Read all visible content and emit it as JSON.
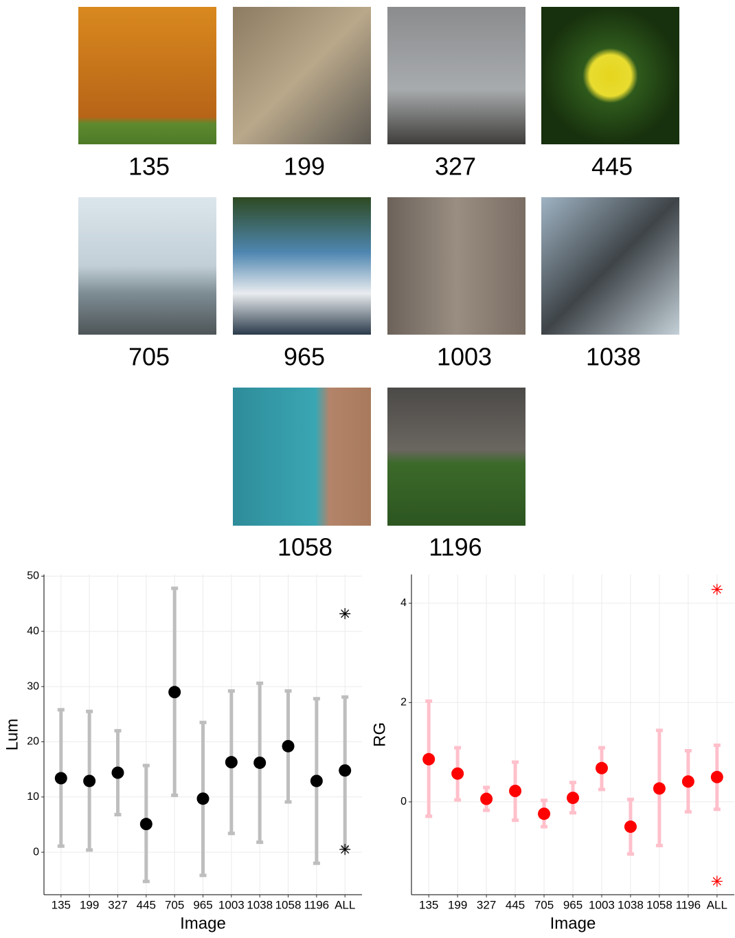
{
  "thumbnails": {
    "labels": [
      "135",
      "199",
      "327",
      "445",
      "705",
      "965",
      "1003",
      "1038",
      "1058",
      "1196"
    ]
  },
  "chart_data": [
    {
      "type": "errorbar",
      "xlabel": "Image",
      "ylabel": "Lum",
      "categories": [
        "135",
        "199",
        "327",
        "445",
        "705",
        "965",
        "1003",
        "1038",
        "1058",
        "1196",
        "ALL"
      ],
      "values": [
        13.4,
        12.9,
        14.4,
        5.1,
        29.0,
        9.7,
        16.3,
        16.2,
        19.2,
        12.9,
        14.8
      ],
      "lower": [
        1.1,
        0.4,
        6.8,
        -5.3,
        10.3,
        -4.2,
        3.4,
        1.8,
        9.1,
        -2.0,
        0.9
      ],
      "upper": [
        25.8,
        25.5,
        22.0,
        15.7,
        47.8,
        23.5,
        29.2,
        30.6,
        29.2,
        27.8,
        28.1
      ],
      "markers": [
        43.2,
        0.5
      ],
      "color": "#000000",
      "bar_color": "#bebebe",
      "ylim": [
        -7.7,
        50.3
      ],
      "yticks": [
        0,
        10,
        20,
        30,
        40,
        50
      ],
      "grid": true
    },
    {
      "type": "errorbar",
      "xlabel": "Image",
      "ylabel": "RG",
      "categories": [
        "135",
        "199",
        "327",
        "445",
        "705",
        "965",
        "1003",
        "1038",
        "1058",
        "1196",
        "ALL"
      ],
      "values": [
        0.86,
        0.57,
        0.06,
        0.22,
        -0.24,
        0.08,
        0.68,
        -0.5,
        0.27,
        0.41,
        0.5
      ],
      "lower": [
        -0.29,
        0.04,
        -0.17,
        -0.37,
        -0.5,
        -0.22,
        0.25,
        -1.05,
        -0.88,
        -0.2,
        -0.15
      ],
      "upper": [
        2.03,
        1.09,
        0.29,
        0.8,
        0.03,
        0.39,
        1.09,
        0.05,
        1.44,
        1.03,
        1.14
      ],
      "markers": [
        4.28,
        -1.6
      ],
      "color": "#ff0000",
      "bar_color": "#ffc0cb",
      "ylim": [
        -1.87,
        4.58
      ],
      "yticks": [
        0,
        2,
        4
      ],
      "grid": true
    }
  ]
}
